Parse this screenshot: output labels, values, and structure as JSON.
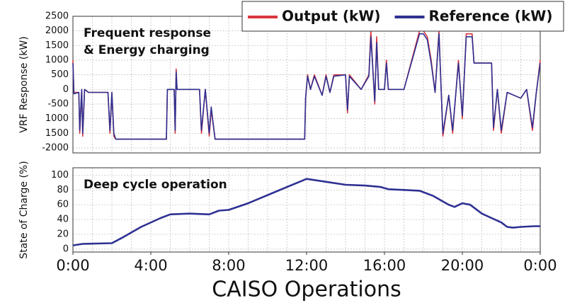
{
  "chart_data": [
    {
      "type": "line",
      "ylabel": "VRF Response (kW)",
      "annotation": [
        "Frequent response",
        "& Energy charging"
      ],
      "legend": "top-right",
      "grid": true,
      "xlim": [
        0,
        24
      ],
      "xgrid": [
        0,
        1,
        2,
        3,
        4,
        5,
        6,
        7,
        8,
        9,
        10,
        11,
        12,
        13,
        14,
        15,
        16,
        17,
        18,
        19,
        20,
        21,
        22,
        23,
        24
      ],
      "ylim": [
        -2170,
        2500
      ],
      "yticks": [
        2500,
        2000,
        1500,
        1000,
        500,
        0,
        -500,
        {
          "value": -1000,
          "label": "1000"
        },
        {
          "value": -1500,
          "label": "1500"
        },
        -2000
      ],
      "x": [
        0,
        0.05,
        0.3,
        0.35,
        0.45,
        0.5,
        0.6,
        0.8,
        1.8,
        1.9,
        2.0,
        2.1,
        2.2,
        4.8,
        4.85,
        5.2,
        5.25,
        5.3,
        5.35,
        6.5,
        6.6,
        6.8,
        7.0,
        7.1,
        7.3,
        11.9,
        11.95,
        12.05,
        12.2,
        12.4,
        12.8,
        13.0,
        13.2,
        13.4,
        14.0,
        14.1,
        14.2,
        14.8,
        15.2,
        15.3,
        15.5,
        15.6,
        15.7,
        16.0,
        16.1,
        16.2,
        17.0,
        17.8,
        18.0,
        18.2,
        18.4,
        18.6,
        18.8,
        19.0,
        19.3,
        19.5,
        19.8,
        20.0,
        20.2,
        20.5,
        20.6,
        21.5,
        21.6,
        21.8,
        22.0,
        22.3,
        23.0,
        23.3,
        23.6,
        23.8,
        24.0
      ],
      "series": [
        {
          "name": "Output (kW)",
          "color": "#d9363e",
          "values": [
            1000,
            -100,
            -100,
            -1500,
            0,
            -1600,
            0,
            -100,
            -100,
            -1500,
            -100,
            -1600,
            -1700,
            -1700,
            0,
            0,
            -1500,
            700,
            0,
            0,
            -1500,
            0,
            -1600,
            -700,
            -1700,
            -1700,
            -300,
            500,
            0,
            500,
            -200,
            500,
            -100,
            500,
            500,
            -800,
            500,
            0,
            500,
            2000,
            -500,
            1800,
            0,
            0,
            1000,
            0,
            0,
            2000,
            2000,
            1800,
            1000,
            -100,
            2000,
            -1600,
            -200,
            -1500,
            1000,
            -1000,
            1900,
            1900,
            900,
            900,
            -1400,
            0,
            -1500,
            -100,
            -300,
            0,
            -1400,
            -100,
            1000
          ]
        },
        {
          "name": "Reference (kW)",
          "color": "#2e3192",
          "values": [
            900,
            -150,
            -100,
            -1400,
            0,
            -1500,
            0,
            -100,
            -100,
            -1400,
            -100,
            -1500,
            -1700,
            -1700,
            0,
            0,
            -1400,
            600,
            0,
            0,
            -1400,
            0,
            -1500,
            -600,
            -1700,
            -1700,
            -300,
            450,
            0,
            450,
            -200,
            450,
            -100,
            450,
            500,
            -700,
            450,
            0,
            450,
            1800,
            -400,
            1600,
            0,
            0,
            900,
            0,
            0,
            1900,
            1900,
            1700,
            900,
            -100,
            1900,
            -1500,
            -200,
            -1400,
            900,
            -900,
            1800,
            1800,
            900,
            900,
            -1300,
            0,
            -1400,
            -100,
            -300,
            0,
            -1300,
            -100,
            900
          ]
        }
      ]
    },
    {
      "type": "line",
      "ylabel": "State of Charge (%)",
      "annotation": [
        "Deep cycle operation"
      ],
      "xlabel": "CAISO Operations",
      "grid": true,
      "xlim": [
        0,
        24
      ],
      "xgrid": [
        0,
        1,
        2,
        3,
        4,
        5,
        6,
        7,
        8,
        9,
        10,
        11,
        12,
        13,
        14,
        15,
        16,
        17,
        18,
        19,
        20,
        21,
        22,
        23,
        24
      ],
      "xticks": [
        {
          "value": 0,
          "label": "0:00"
        },
        {
          "value": 4,
          "label": "4:00"
        },
        {
          "value": 8,
          "label": "8:00"
        },
        {
          "value": 12,
          "label": "12:00"
        },
        {
          "value": 16,
          "label": "16:00"
        },
        {
          "value": 20,
          "label": "20:00"
        },
        {
          "value": 24,
          "label": "0:00"
        }
      ],
      "ylim": [
        -4,
        110
      ],
      "yticks": [
        100,
        80,
        60,
        40,
        20,
        0
      ],
      "x": [
        0,
        0.5,
        2.0,
        2.5,
        3.5,
        4.5,
        5.0,
        6.0,
        7.0,
        7.5,
        8.0,
        9.0,
        10.0,
        11.0,
        12.0,
        13.0,
        14.0,
        15.0,
        15.8,
        16.2,
        17.0,
        17.8,
        18.5,
        19.3,
        19.6,
        20.0,
        20.4,
        21.0,
        21.5,
        22.0,
        22.3,
        22.6,
        23.0,
        23.7,
        24.0
      ],
      "series": [
        {
          "color": "#2e3192",
          "values": [
            5,
            7,
            8,
            15,
            30,
            42,
            47,
            48,
            47,
            52,
            53,
            62,
            73,
            84,
            95,
            91,
            87,
            86,
            84,
            81,
            80,
            79,
            72,
            60,
            57,
            62,
            60,
            48,
            42,
            36,
            30,
            29,
            30,
            31,
            31
          ]
        }
      ]
    }
  ]
}
